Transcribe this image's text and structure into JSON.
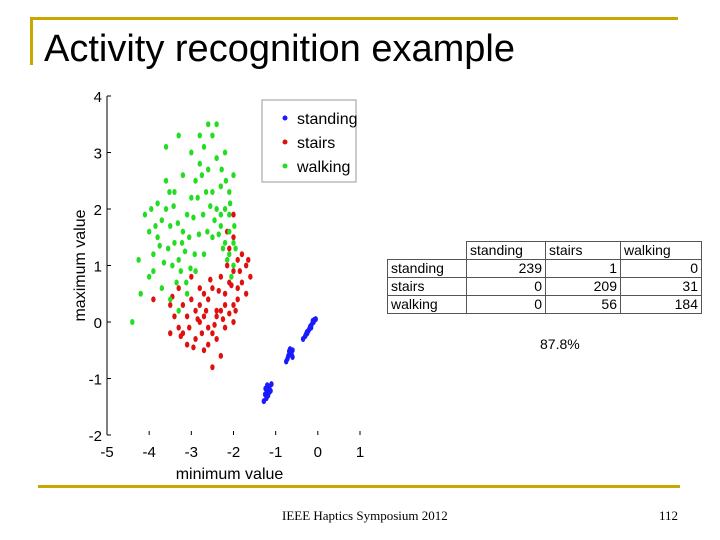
{
  "slide": {
    "title": "Activity recognition example",
    "footer": "IEEE Haptics Symposium 2012",
    "page_number": "112",
    "accent_color": "#c8a800"
  },
  "chart_data": {
    "type": "scatter",
    "xlabel": "minimum value",
    "ylabel": "maximum value",
    "xlim": [
      -5,
      1
    ],
    "ylim": [
      -2,
      4
    ],
    "xticks": [
      "-5",
      "-4",
      "-3",
      "-2",
      "-1",
      "0",
      "1"
    ],
    "yticks": [
      "4",
      "3",
      "2",
      "1",
      "0",
      "-1",
      "-2"
    ],
    "legend_position": "top-right",
    "series": [
      {
        "name": "standing",
        "color": "#1a1aff",
        "points": [
          [
            -0.05,
            0.05
          ],
          [
            -0.1,
            0.0
          ],
          [
            -0.15,
            -0.05
          ],
          [
            -0.2,
            -0.12
          ],
          [
            -0.25,
            -0.2
          ],
          [
            -0.3,
            -0.25
          ],
          [
            -0.12,
            0.02
          ],
          [
            -0.18,
            -0.08
          ],
          [
            -0.22,
            -0.15
          ],
          [
            -0.28,
            -0.22
          ],
          [
            -0.08,
            0.04
          ],
          [
            -0.35,
            -0.3
          ],
          [
            -0.26,
            -0.18
          ],
          [
            -0.16,
            -0.1
          ],
          [
            -0.6,
            -0.5
          ],
          [
            -0.65,
            -0.55
          ],
          [
            -0.7,
            -0.6
          ],
          [
            -0.72,
            -0.65
          ],
          [
            -0.62,
            -0.58
          ],
          [
            -0.68,
            -0.52
          ],
          [
            -0.75,
            -0.7
          ],
          [
            -0.6,
            -0.62
          ],
          [
            -0.66,
            -0.48
          ],
          [
            -1.1,
            -1.1
          ],
          [
            -1.15,
            -1.15
          ],
          [
            -1.2,
            -1.2
          ],
          [
            -1.25,
            -1.28
          ],
          [
            -1.18,
            -1.3
          ],
          [
            -1.22,
            -1.35
          ],
          [
            -1.12,
            -1.22
          ],
          [
            -1.28,
            -1.4
          ],
          [
            -1.2,
            -1.12
          ],
          [
            -1.16,
            -1.25
          ],
          [
            -1.24,
            -1.18
          ]
        ]
      },
      {
        "name": "stairs",
        "color": "#e01010",
        "points": [
          [
            -3.9,
            0.4
          ],
          [
            -3.5,
            0.3
          ],
          [
            -3.4,
            0.1
          ],
          [
            -3.2,
            -0.2
          ],
          [
            -3.1,
            -0.4
          ],
          [
            -2.9,
            -0.3
          ],
          [
            -2.8,
            0.0
          ],
          [
            -2.7,
            -0.5
          ],
          [
            -2.5,
            -0.2
          ],
          [
            -2.4,
            0.1
          ],
          [
            -2.3,
            0.2
          ],
          [
            -2.2,
            0.5
          ],
          [
            -2.1,
            0.7
          ],
          [
            -2.0,
            0.9
          ],
          [
            -1.9,
            1.1
          ],
          [
            -1.8,
            1.2
          ],
          [
            -1.7,
            1.0
          ],
          [
            -1.6,
            0.8
          ],
          [
            -1.7,
            0.5
          ],
          [
            -1.9,
            0.6
          ],
          [
            -2.0,
            0.3
          ],
          [
            -2.2,
            -0.1
          ],
          [
            -2.4,
            -0.3
          ],
          [
            -2.6,
            -0.1
          ],
          [
            -2.8,
            0.3
          ],
          [
            -3.0,
            0.4
          ],
          [
            -3.3,
            0.6
          ],
          [
            -3.0,
            0.8
          ],
          [
            -2.8,
            0.6
          ],
          [
            -2.6,
            0.4
          ],
          [
            -2.5,
            0.6
          ],
          [
            -2.3,
            0.8
          ],
          [
            -2.1,
            1.3
          ],
          [
            -2.0,
            1.5
          ],
          [
            -1.9,
            0.4
          ],
          [
            -2.2,
            0.3
          ],
          [
            -2.4,
            0.2
          ],
          [
            -2.7,
            0.1
          ],
          [
            -2.9,
            0.2
          ],
          [
            -3.1,
            0.1
          ],
          [
            -3.3,
            -0.1
          ],
          [
            -3.5,
            -0.2
          ],
          [
            -2.6,
            -0.4
          ],
          [
            -2.3,
            -0.6
          ],
          [
            -2.5,
            -0.8
          ],
          [
            -2.0,
            0.0
          ],
          [
            -1.8,
            0.7
          ],
          [
            -1.65,
            1.1
          ],
          [
            -2.15,
            1.0
          ],
          [
            -2.35,
            0.55
          ],
          [
            -2.55,
            0.75
          ],
          [
            -2.75,
            -0.2
          ],
          [
            -2.95,
            -0.45
          ],
          [
            -3.2,
            0.3
          ],
          [
            -2.45,
            -0.05
          ],
          [
            -2.1,
            0.15
          ],
          [
            -1.95,
            0.2
          ],
          [
            -1.85,
            0.9
          ],
          [
            -2.05,
            0.65
          ],
          [
            -2.25,
            0.05
          ],
          [
            -2.65,
            0.2
          ],
          [
            -2.85,
            0.05
          ],
          [
            -3.05,
            -0.1
          ],
          [
            -3.25,
            -0.25
          ],
          [
            -3.45,
            0.45
          ],
          [
            -2.7,
            0.5
          ],
          [
            -2.0,
            1.9
          ],
          [
            -2.15,
            1.6
          ]
        ]
      },
      {
        "name": "walking",
        "color": "#22dd22",
        "points": [
          [
            -4.4,
            0.0
          ],
          [
            -4.2,
            0.5
          ],
          [
            -4.0,
            0.8
          ],
          [
            -3.9,
            1.2
          ],
          [
            -3.8,
            1.5
          ],
          [
            -3.7,
            1.8
          ],
          [
            -3.6,
            2.0
          ],
          [
            -3.5,
            1.7
          ],
          [
            -3.4,
            1.4
          ],
          [
            -3.3,
            1.1
          ],
          [
            -3.2,
            1.6
          ],
          [
            -3.1,
            1.9
          ],
          [
            -3.0,
            2.2
          ],
          [
            -2.9,
            2.5
          ],
          [
            -2.8,
            2.8
          ],
          [
            -2.7,
            3.1
          ],
          [
            -2.6,
            2.7
          ],
          [
            -2.5,
            2.3
          ],
          [
            -2.4,
            2.0
          ],
          [
            -2.3,
            1.7
          ],
          [
            -2.2,
            1.4
          ],
          [
            -2.1,
            1.2
          ],
          [
            -2.0,
            1.0
          ],
          [
            -2.1,
            1.6
          ],
          [
            -2.2,
            2.0
          ],
          [
            -2.3,
            2.4
          ],
          [
            -2.4,
            2.9
          ],
          [
            -2.5,
            3.3
          ],
          [
            -2.6,
            3.5
          ],
          [
            -2.8,
            3.3
          ],
          [
            -3.0,
            3.0
          ],
          [
            -3.2,
            2.6
          ],
          [
            -3.4,
            2.3
          ],
          [
            -3.6,
            2.5
          ],
          [
            -3.8,
            2.1
          ],
          [
            -4.0,
            1.6
          ],
          [
            -3.9,
            0.9
          ],
          [
            -3.7,
            0.6
          ],
          [
            -3.5,
            0.4
          ],
          [
            -3.3,
            0.2
          ],
          [
            -3.1,
            0.5
          ],
          [
            -2.9,
            0.9
          ],
          [
            -2.7,
            1.2
          ],
          [
            -2.5,
            1.5
          ],
          [
            -2.3,
            1.9
          ],
          [
            -2.1,
            2.3
          ],
          [
            -2.0,
            2.6
          ],
          [
            -1.95,
            1.3
          ],
          [
            -2.05,
            0.8
          ],
          [
            -2.15,
            1.1
          ],
          [
            -2.25,
            1.3
          ],
          [
            -2.35,
            1.55
          ],
          [
            -2.45,
            1.8
          ],
          [
            -2.55,
            2.05
          ],
          [
            -2.65,
            2.3
          ],
          [
            -2.75,
            2.6
          ],
          [
            -2.85,
            2.2
          ],
          [
            -2.95,
            1.85
          ],
          [
            -3.05,
            1.5
          ],
          [
            -3.15,
            1.25
          ],
          [
            -3.25,
            0.9
          ],
          [
            -3.35,
            0.7
          ],
          [
            -3.45,
            1.0
          ],
          [
            -3.55,
            1.3
          ],
          [
            -3.65,
            1.05
          ],
          [
            -3.75,
            1.35
          ],
          [
            -3.85,
            1.7
          ],
          [
            -3.95,
            2.0
          ],
          [
            -4.1,
            1.9
          ],
          [
            -4.25,
            1.1
          ],
          [
            -3.3,
            3.3
          ],
          [
            -2.2,
            3.0
          ],
          [
            -2.4,
            3.5
          ],
          [
            -3.6,
            3.1
          ],
          [
            -2.1,
            1.9
          ],
          [
            -2.0,
            1.4
          ],
          [
            -1.98,
            1.7
          ],
          [
            -2.08,
            2.1
          ],
          [
            -2.18,
            2.5
          ],
          [
            -2.28,
            2.7
          ],
          [
            -2.62,
            1.6
          ],
          [
            -2.72,
            1.9
          ],
          [
            -2.82,
            1.55
          ],
          [
            -2.92,
            1.2
          ],
          [
            -3.02,
            0.95
          ],
          [
            -3.12,
            0.7
          ],
          [
            -3.22,
            1.4
          ],
          [
            -3.32,
            1.75
          ],
          [
            -3.42,
            2.05
          ],
          [
            -3.52,
            2.3
          ]
        ]
      }
    ]
  },
  "confusion_matrix": {
    "columns": [
      "standing",
      "stairs",
      "walking"
    ],
    "rows": [
      {
        "label": "standing",
        "values": [
          "239",
          "1",
          "0"
        ]
      },
      {
        "label": "stairs",
        "values": [
          "0",
          "209",
          "31"
        ]
      },
      {
        "label": "walking",
        "values": [
          "0",
          "56",
          "184"
        ]
      }
    ],
    "accuracy": "87.8%"
  }
}
